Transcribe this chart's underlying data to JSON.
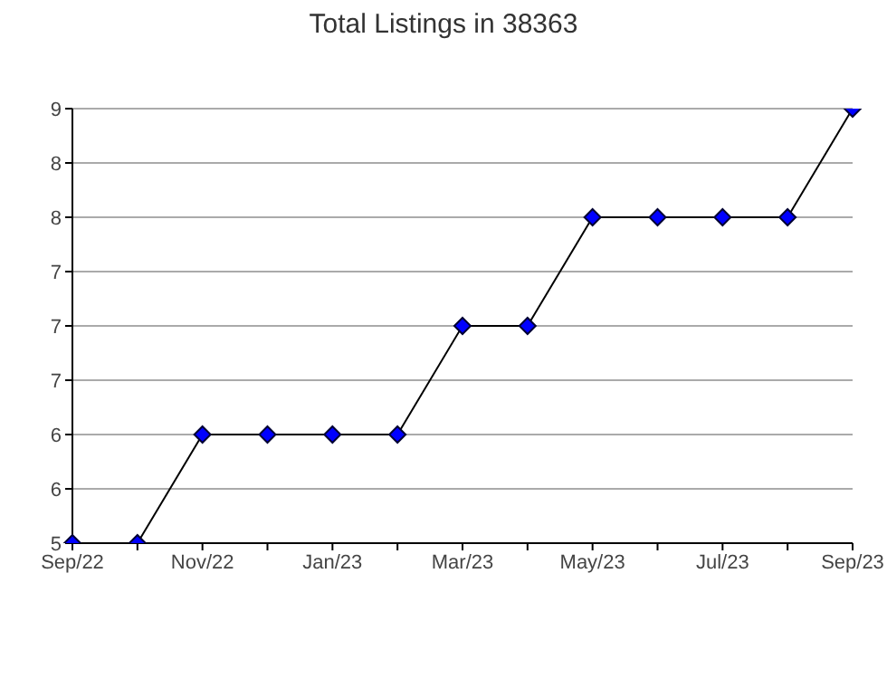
{
  "chart_data": {
    "type": "line",
    "title": "Total Listings in 38363",
    "categories": [
      "Sep/22",
      null,
      "Nov/22",
      null,
      "Jan/23",
      null,
      "Mar/23",
      null,
      "May/23",
      null,
      "Jul/23",
      null,
      "Sep/23"
    ],
    "series": [
      {
        "color": "#0000ff",
        "values": [
          5,
          5,
          6,
          6,
          6,
          6,
          7,
          7,
          8,
          8,
          8,
          8,
          9
        ]
      }
    ],
    "ylim": [
      5,
      9
    ],
    "yticks": [
      5,
      {
        "value": 5.5,
        "label": "6"
      },
      6,
      {
        "value": 6.5,
        "label": "7"
      },
      7,
      {
        "value": 7.5,
        "label": "7"
      },
      8,
      {
        "value": 8.5,
        "label": "8"
      },
      9
    ],
    "grid": "y",
    "marker": "diamond",
    "line_style": "solid",
    "legend": false
  }
}
